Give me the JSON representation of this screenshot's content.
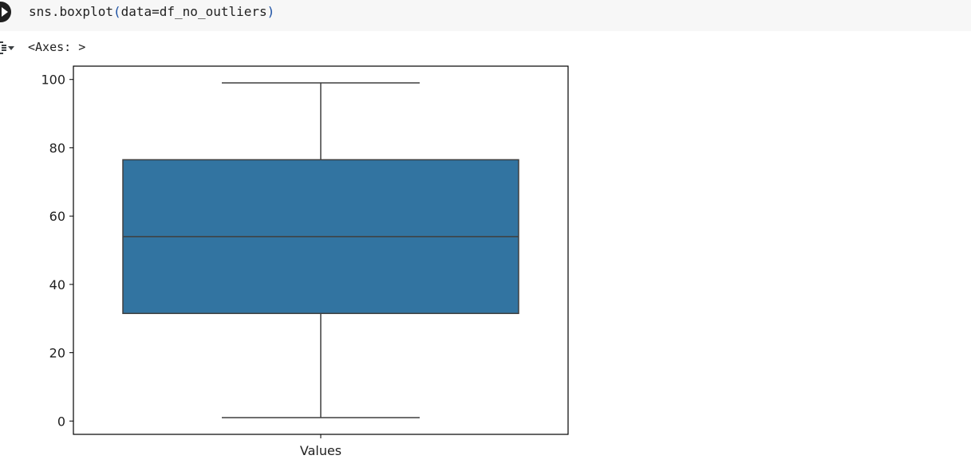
{
  "cell": {
    "code_fn": "sns.boxplot",
    "code_open": "(",
    "code_args": "data=df_no_outliers",
    "code_close": ")",
    "run_icon": "play-icon"
  },
  "output": {
    "icon": "output-expand-icon",
    "text": "<Axes: >"
  },
  "chart_data": {
    "type": "box",
    "categories": [
      "Values"
    ],
    "series": [
      {
        "whisker_low": 1,
        "q1": 31.5,
        "median": 54,
        "q3": 76.5,
        "whisker_high": 99
      }
    ],
    "y_ticks": [
      0,
      20,
      40,
      60,
      80,
      100
    ],
    "y_tick_labels": [
      "0",
      "20",
      "40",
      "60",
      "80",
      "100"
    ],
    "ylim": [
      -3.9,
      103.9
    ],
    "xlabel": "",
    "ylabel": "",
    "title": "",
    "grid": false,
    "colors": {
      "box_fill": "#3274a1",
      "line": "#3f3f3f",
      "frame": "#000000"
    }
  }
}
